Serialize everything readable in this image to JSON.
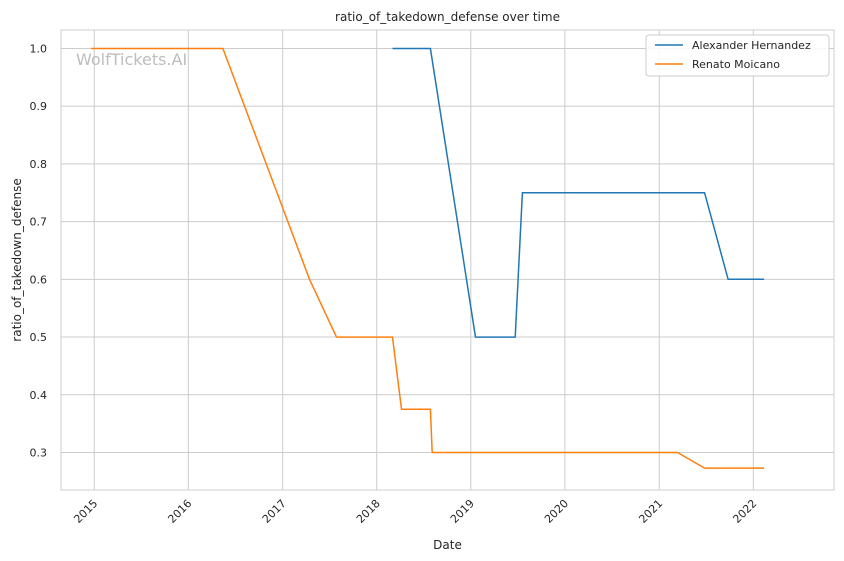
{
  "watermark": "WolfTickets.AI",
  "chart_data": {
    "type": "line",
    "title": "ratio_of_takedown_defense over time",
    "xlabel": "Date",
    "ylabel": "ratio_of_takedown_defense",
    "xlim": [
      "2014-08-25",
      "2022-11-10"
    ],
    "ylim": [
      0.235,
      1.032
    ],
    "x_ticks": [
      "2015-01-01",
      "2016-01-01",
      "2017-01-01",
      "2018-01-01",
      "2019-01-01",
      "2020-01-01",
      "2021-01-01",
      "2022-01-01"
    ],
    "x_tick_labels": [
      "2015",
      "2016",
      "2017",
      "2018",
      "2019",
      "2020",
      "2021",
      "2022"
    ],
    "y_ticks": [
      0.3,
      0.4,
      0.5,
      0.6,
      0.7,
      0.8,
      0.9,
      1.0
    ],
    "y_tick_labels": [
      "0.3",
      "0.4",
      "0.5",
      "0.6",
      "0.7",
      "0.8",
      "0.9",
      "1.0"
    ],
    "grid": true,
    "legend_position": "top-right",
    "series": [
      {
        "name": "Alexander Hernandez",
        "color": "#1f77b4",
        "points": [
          [
            "2018-03-03",
            1.0
          ],
          [
            "2018-07-28",
            1.0
          ],
          [
            "2019-01-19",
            0.5
          ],
          [
            "2019-06-22",
            0.5
          ],
          [
            "2019-07-20",
            0.75
          ],
          [
            "2021-06-26",
            0.75
          ],
          [
            "2021-09-25",
            0.6
          ],
          [
            "2022-02-12",
            0.6
          ]
        ]
      },
      {
        "name": "Renato Moicano",
        "color": "#ff7f0e",
        "points": [
          [
            "2014-12-20",
            1.0
          ],
          [
            "2016-05-14",
            1.0
          ],
          [
            "2017-04-15",
            0.6
          ],
          [
            "2017-07-29",
            0.5
          ],
          [
            "2018-03-03",
            0.5
          ],
          [
            "2018-04-07",
            0.375
          ],
          [
            "2018-07-28",
            0.375
          ],
          [
            "2018-08-04",
            0.3
          ],
          [
            "2021-03-13",
            0.3
          ],
          [
            "2021-06-26",
            0.273
          ],
          [
            "2022-02-12",
            0.273
          ]
        ]
      }
    ]
  }
}
